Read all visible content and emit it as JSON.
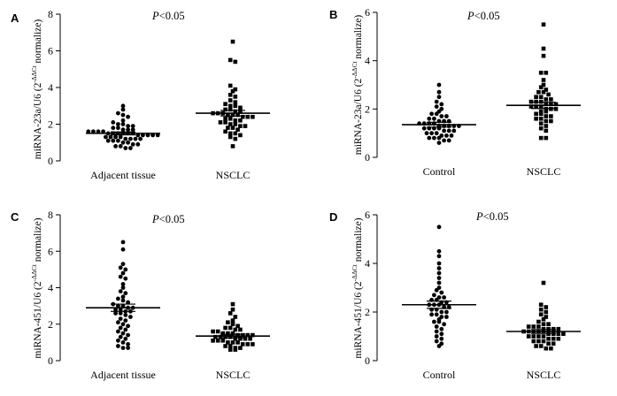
{
  "chart_data": [
    {
      "type": "scatter",
      "panel": "A",
      "ylabel": "miRNA-23a/U6 (2",
      "ylabel_sup": "-ΔΔCt",
      "ylabel_tail": " normalize)",
      "annotation_p": "P",
      "annotation_rest": "<0.05",
      "categories": [
        "Adjacent tissue",
        "NSCLC"
      ],
      "ylim": [
        0,
        8
      ],
      "yticks": [
        "0",
        "2",
        "4",
        "6",
        "8"
      ],
      "marker_shapes": [
        "circle",
        "square"
      ],
      "means": [
        1.5,
        2.6
      ],
      "sem_bars": [
        [
          1.42,
          1.58
        ],
        [
          2.45,
          2.75
        ]
      ],
      "series": [
        {
          "category": "Adjacent tissue",
          "values": [
            3.0,
            2.8,
            2.6,
            2.5,
            2.4,
            2.2,
            2.1,
            2.0,
            2.0,
            1.9,
            1.9,
            1.8,
            1.8,
            1.7,
            1.7,
            1.7,
            1.6,
            1.6,
            1.6,
            1.6,
            1.5,
            1.5,
            1.5,
            1.5,
            1.5,
            1.5,
            1.4,
            1.4,
            1.4,
            1.4,
            1.4,
            1.3,
            1.3,
            1.3,
            1.3,
            1.2,
            1.2,
            1.2,
            1.2,
            1.1,
            1.1,
            1.1,
            1.0,
            1.0,
            0.9,
            0.9,
            0.8,
            0.8,
            0.7,
            0.7
          ]
        },
        {
          "category": "NSCLC",
          "values": [
            6.5,
            5.5,
            5.4,
            4.1,
            3.9,
            3.8,
            3.6,
            3.5,
            3.3,
            3.2,
            3.1,
            3.0,
            3.0,
            2.9,
            2.8,
            2.8,
            2.7,
            2.7,
            2.6,
            2.6,
            2.6,
            2.5,
            2.5,
            2.5,
            2.4,
            2.4,
            2.4,
            2.3,
            2.3,
            2.2,
            2.2,
            2.1,
            2.1,
            2.0,
            2.0,
            1.9,
            1.9,
            1.8,
            1.8,
            1.7,
            1.6,
            1.5,
            1.5,
            1.4,
            1.3,
            1.2,
            0.8
          ]
        }
      ]
    },
    {
      "type": "scatter",
      "panel": "B",
      "ylabel": "miRNA-23a/U6 (2",
      "ylabel_sup": "-ΔΔCt",
      "ylabel_tail": " normalize)",
      "annotation_p": "P",
      "annotation_rest": "<0.05",
      "categories": [
        "Control",
        "NSCLC"
      ],
      "ylim": [
        0,
        6
      ],
      "yticks": [
        "0",
        "2",
        "4",
        "6"
      ],
      "marker_shapes": [
        "circle",
        "square"
      ],
      "means": [
        1.35,
        2.15
      ],
      "sem_bars": [
        [
          1.25,
          1.45
        ],
        [
          2.02,
          2.28
        ]
      ],
      "series": [
        {
          "category": "Control",
          "values": [
            3.0,
            2.7,
            2.5,
            2.3,
            2.2,
            2.1,
            2.0,
            1.9,
            1.8,
            1.8,
            1.7,
            1.7,
            1.6,
            1.6,
            1.5,
            1.5,
            1.5,
            1.4,
            1.4,
            1.4,
            1.4,
            1.3,
            1.3,
            1.3,
            1.3,
            1.3,
            1.2,
            1.2,
            1.2,
            1.2,
            1.1,
            1.1,
            1.1,
            1.0,
            1.0,
            1.0,
            0.9,
            0.9,
            0.9,
            0.8,
            0.8,
            0.8,
            0.7,
            0.7,
            0.6
          ]
        },
        {
          "category": "NSCLC",
          "values": [
            5.5,
            4.5,
            4.2,
            3.5,
            3.5,
            3.2,
            3.0,
            2.9,
            2.8,
            2.7,
            2.7,
            2.6,
            2.5,
            2.5,
            2.4,
            2.4,
            2.3,
            2.3,
            2.3,
            2.2,
            2.2,
            2.2,
            2.1,
            2.1,
            2.1,
            2.0,
            2.0,
            2.0,
            1.9,
            1.9,
            1.8,
            1.8,
            1.7,
            1.7,
            1.6,
            1.6,
            1.5,
            1.5,
            1.4,
            1.3,
            1.2,
            1.1,
            0.8,
            0.8
          ]
        }
      ]
    },
    {
      "type": "scatter",
      "panel": "C",
      "ylabel": "miRNA-451/U6 (2",
      "ylabel_sup": "-ΔΔCt",
      "ylabel_tail": " normalize)",
      "annotation_p": "P",
      "annotation_rest": "<0.05",
      "categories": [
        "Adjacent tissue",
        "NSCLC"
      ],
      "ylim": [
        0,
        8
      ],
      "yticks": [
        "0",
        "2",
        "4",
        "6",
        "8"
      ],
      "marker_shapes": [
        "circle",
        "square"
      ],
      "means": [
        2.9,
        1.35
      ],
      "sem_bars": [
        [
          2.7,
          3.1
        ],
        [
          1.25,
          1.45
        ]
      ],
      "series": [
        {
          "category": "Adjacent tissue",
          "values": [
            6.5,
            6.1,
            5.3,
            5.1,
            5.0,
            4.8,
            4.6,
            4.5,
            4.2,
            4.0,
            3.8,
            3.7,
            3.5,
            3.4,
            3.3,
            3.2,
            3.1,
            3.0,
            3.0,
            2.9,
            2.9,
            2.8,
            2.8,
            2.7,
            2.7,
            2.6,
            2.6,
            2.5,
            2.4,
            2.3,
            2.2,
            2.1,
            2.0,
            1.9,
            1.8,
            1.7,
            1.6,
            1.5,
            1.4,
            1.3,
            1.2,
            1.1,
            1.0,
            0.9,
            0.8,
            0.7,
            0.7
          ]
        },
        {
          "category": "NSCLC",
          "values": [
            3.1,
            2.8,
            2.6,
            2.4,
            2.2,
            2.1,
            2.0,
            1.9,
            1.8,
            1.8,
            1.7,
            1.7,
            1.6,
            1.6,
            1.5,
            1.5,
            1.5,
            1.4,
            1.4,
            1.4,
            1.4,
            1.3,
            1.3,
            1.3,
            1.3,
            1.2,
            1.2,
            1.2,
            1.2,
            1.1,
            1.1,
            1.1,
            1.0,
            1.0,
            1.0,
            0.9,
            0.9,
            0.9,
            0.8,
            0.8,
            0.7,
            0.7,
            0.6,
            0.6
          ]
        }
      ]
    },
    {
      "type": "scatter",
      "panel": "D",
      "ylabel": "miRNA-451/U6 (2",
      "ylabel_sup": "-ΔΔCt",
      "ylabel_tail": " normalize)",
      "annotation_p": "P",
      "annotation_rest": "<0.05",
      "categories": [
        "Control",
        "NSCLC"
      ],
      "ylim": [
        0,
        6
      ],
      "yticks": [
        "0",
        "2",
        "4",
        "6"
      ],
      "marker_shapes": [
        "circle",
        "square"
      ],
      "means": [
        2.3,
        1.2
      ],
      "sem_bars": [
        [
          2.15,
          2.45
        ],
        [
          1.12,
          1.28
        ]
      ],
      "series": [
        {
          "category": "Control",
          "values": [
            5.5,
            4.5,
            4.3,
            4.0,
            3.8,
            3.6,
            3.4,
            3.2,
            3.0,
            2.9,
            2.8,
            2.7,
            2.6,
            2.6,
            2.5,
            2.5,
            2.4,
            2.4,
            2.3,
            2.3,
            2.3,
            2.2,
            2.2,
            2.1,
            2.1,
            2.0,
            2.0,
            1.9,
            1.9,
            1.8,
            1.8,
            1.7,
            1.6,
            1.6,
            1.5,
            1.4,
            1.3,
            1.2,
            1.1,
            1.0,
            0.9,
            0.8,
            0.7,
            0.6
          ]
        },
        {
          "category": "NSCLC",
          "values": [
            3.2,
            2.3,
            2.2,
            2.1,
            2.0,
            1.9,
            1.8,
            1.7,
            1.6,
            1.5,
            1.5,
            1.4,
            1.4,
            1.4,
            1.3,
            1.3,
            1.3,
            1.3,
            1.2,
            1.2,
            1.2,
            1.2,
            1.2,
            1.1,
            1.1,
            1.1,
            1.1,
            1.0,
            1.0,
            1.0,
            1.0,
            0.9,
            0.9,
            0.9,
            0.8,
            0.8,
            0.8,
            0.7,
            0.7,
            0.6,
            0.6,
            0.5,
            0.5
          ]
        }
      ]
    }
  ]
}
